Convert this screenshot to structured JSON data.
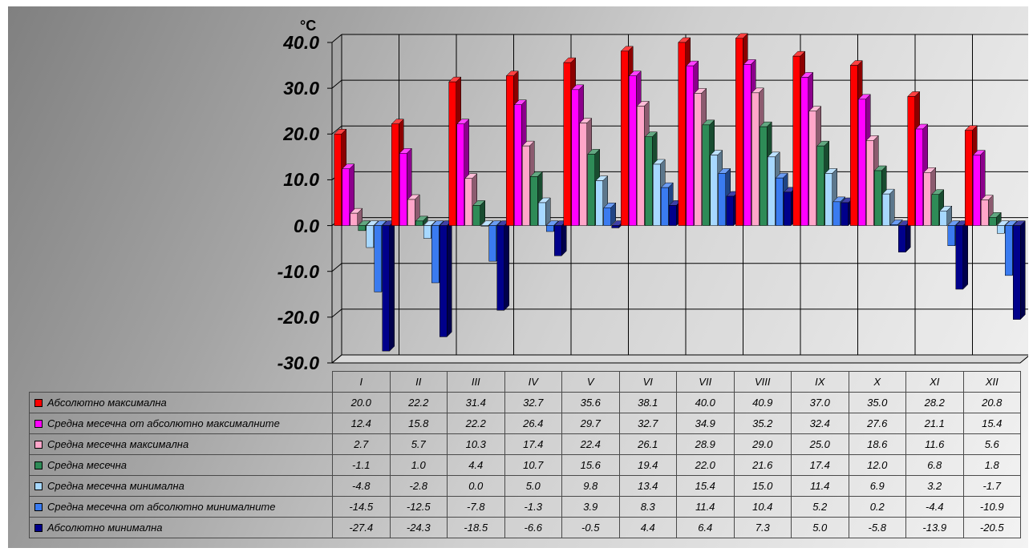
{
  "chart_data": {
    "type": "bar",
    "title": "",
    "unit_label": "°C",
    "ylim": [
      -30,
      40
    ],
    "y_ticks": [
      "40.0",
      "30.0",
      "20.0",
      "10.0",
      "0.0",
      "-10.0",
      "-20.0",
      "-30.0"
    ],
    "grid": true,
    "legend": "table-below",
    "categories": [
      "I",
      "II",
      "III",
      "IV",
      "V",
      "VI",
      "VII",
      "VIII",
      "IX",
      "X",
      "XI",
      "XII"
    ],
    "series": [
      {
        "name": "Абсолютно максимална",
        "color": "#ff0000",
        "values": [
          "20.0",
          "22.2",
          "31.4",
          "32.7",
          "35.6",
          "38.1",
          "40.0",
          "40.9",
          "37.0",
          "35.0",
          "28.2",
          "20.8"
        ]
      },
      {
        "name": "Средна месечна от абсолютно максималните",
        "color": "#ff00ff",
        "values": [
          "12.4",
          "15.8",
          "22.2",
          "26.4",
          "29.7",
          "32.7",
          "34.9",
          "35.2",
          "32.4",
          "27.6",
          "21.1",
          "15.4"
        ]
      },
      {
        "name": "Средна месечна максимална",
        "color": "#ffa6c9",
        "values": [
          "2.7",
          "5.7",
          "10.3",
          "17.4",
          "22.4",
          "26.1",
          "28.9",
          "29.0",
          "25.0",
          "18.6",
          "11.6",
          "5.6"
        ]
      },
      {
        "name": "Средна месечна",
        "color": "#2e8b57",
        "values": [
          "-1.1",
          "1.0",
          "4.4",
          "10.7",
          "15.6",
          "19.4",
          "22.0",
          "21.6",
          "17.4",
          "12.0",
          "6.8",
          "1.8"
        ]
      },
      {
        "name": "Средна месечна минимална",
        "color": "#a7d8ff",
        "values": [
          "-4.8",
          "-2.8",
          "0.0",
          "5.0",
          "9.8",
          "13.4",
          "15.4",
          "15.0",
          "11.4",
          "6.9",
          "3.2",
          "-1.7"
        ]
      },
      {
        "name": "Средна месечна от абсолютно минималните",
        "color": "#3a7bf0",
        "values": [
          "-14.5",
          "-12.5",
          "-7.8",
          "-1.3",
          "3.9",
          "8.3",
          "11.4",
          "10.4",
          "5.2",
          "0.2",
          "-4.4",
          "-10.9"
        ]
      },
      {
        "name": "Абсолютно минимална",
        "color": "#00008b",
        "values": [
          "-27.4",
          "-24.3",
          "-18.5",
          "-6.6",
          "-0.5",
          "4.4",
          "6.4",
          "7.3",
          "5.0",
          "-5.8",
          "-13.9",
          "-20.5"
        ]
      }
    ]
  }
}
